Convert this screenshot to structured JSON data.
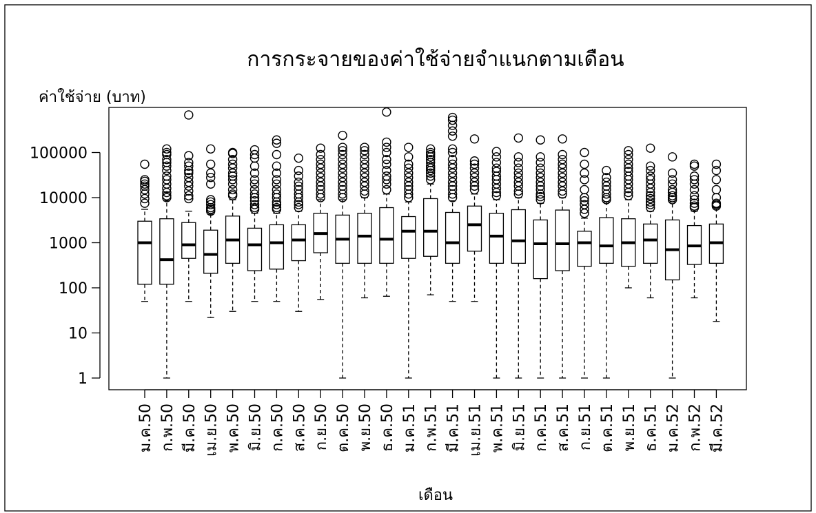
{
  "chart_data": {
    "type": "box",
    "title": "การกระจายของค่าใช้จ่ายจำแนกตามเดือน",
    "xlabel": "เดือน",
    "ylabel": "ค่าใช้จ่าย (บาท)",
    "yscale": "log",
    "ylim": [
      1,
      700000
    ],
    "yticks": [
      1,
      10,
      100,
      1000,
      10000,
      100000
    ],
    "ytick_labels": [
      "1",
      "10",
      "100",
      "1000",
      "10000",
      "100000"
    ],
    "grid": false,
    "categories": [
      "ม.ค.50",
      "ก.พ.50",
      "มี.ค.50",
      "เม.ย.50",
      "พ.ค.50",
      "มิ.ย.50",
      "ก.ค.50",
      "ส.ค.50",
      "ก.ย.50",
      "ต.ค.50",
      "พ.ย.50",
      "ธ.ค.50",
      "ม.ค.51",
      "ก.พ.51",
      "มี.ค.51",
      "เม.ย.51",
      "พ.ค.51",
      "มิ.ย.51",
      "ก.ค.51",
      "ส.ค.51",
      "ก.ย.51",
      "ต.ค.51",
      "พ.ย.51",
      "ธ.ค.51",
      "ม.ค.52",
      "ก.พ.52",
      "มี.ค.52"
    ],
    "boxes": [
      {
        "min": 50,
        "q1": 120,
        "median": 1000,
        "q3": 3000,
        "max": 5500,
        "outliers": [
          7500,
          9500,
          12000,
          15000,
          18000,
          20000,
          23000,
          25000,
          55000
        ]
      },
      {
        "min": 1,
        "q1": 120,
        "median": 420,
        "q3": 3400,
        "max": 8500,
        "outliers": [
          10000,
          11000,
          13000,
          16000,
          20000,
          25000,
          30000,
          40000,
          50000,
          60000,
          70000,
          90000,
          100000,
          120000
        ]
      },
      {
        "min": 50,
        "q1": 450,
        "median": 900,
        "q3": 2800,
        "max": 5000,
        "outliers": [
          9500,
          11000,
          14000,
          18000,
          22000,
          28000,
          35000,
          40000,
          50000,
          60000,
          85000,
          680000
        ]
      },
      {
        "min": 22,
        "q1": 210,
        "median": 550,
        "q3": 1900,
        "max": 4300,
        "outliers": [
          5000,
          5500,
          6000,
          7000,
          8000,
          9000,
          20000,
          28000,
          35000,
          55000,
          120000
        ]
      },
      {
        "min": 30,
        "q1": 350,
        "median": 1150,
        "q3": 3900,
        "max": 9000,
        "outliers": [
          11000,
          12000,
          15000,
          20000,
          25000,
          30000,
          35000,
          45000,
          55000,
          70000,
          95000,
          100000
        ]
      },
      {
        "min": 50,
        "q1": 240,
        "median": 900,
        "q3": 2100,
        "max": 4500,
        "outliers": [
          5500,
          6000,
          7000,
          8500,
          10000,
          12000,
          15000,
          20000,
          25000,
          35000,
          50000,
          75000,
          90000,
          115000
        ]
      },
      {
        "min": 50,
        "q1": 260,
        "median": 1000,
        "q3": 2500,
        "max": 4500,
        "outliers": [
          5500,
          6000,
          7000,
          8000,
          10000,
          12000,
          15000,
          20000,
          25000,
          35000,
          50000,
          90000,
          160000,
          190000
        ]
      },
      {
        "min": 30,
        "q1": 400,
        "median": 1150,
        "q3": 2500,
        "max": 5000,
        "outliers": [
          6000,
          7000,
          8000,
          10000,
          12000,
          15000,
          18000,
          22000,
          30000,
          40000,
          75000
        ]
      },
      {
        "min": 55,
        "q1": 600,
        "median": 1600,
        "q3": 4500,
        "max": 9000,
        "outliers": [
          10000,
          12000,
          15000,
          18000,
          22000,
          28000,
          35000,
          45000,
          55000,
          70000,
          90000,
          125000
        ]
      },
      {
        "min": 1,
        "q1": 350,
        "median": 1200,
        "q3": 4100,
        "max": 9000,
        "outliers": [
          10000,
          12000,
          15000,
          18000,
          22000,
          28000,
          35000,
          45000,
          55000,
          70000,
          90000,
          110000,
          130000,
          240000
        ]
      },
      {
        "min": 60,
        "q1": 350,
        "median": 1400,
        "q3": 4500,
        "max": 10000,
        "outliers": [
          12000,
          14000,
          18000,
          22000,
          28000,
          35000,
          45000,
          55000,
          70000,
          90000,
          110000,
          130000
        ]
      },
      {
        "min": 65,
        "q1": 350,
        "median": 1200,
        "q3": 6000,
        "max": 12000,
        "outliers": [
          15000,
          20000,
          25000,
          30000,
          40000,
          55000,
          70000,
          100000,
          130000,
          170000,
          790000
        ]
      },
      {
        "min": 1,
        "q1": 450,
        "median": 1800,
        "q3": 3800,
        "max": 8000,
        "outliers": [
          10000,
          12000,
          15000,
          18000,
          22000,
          28000,
          35000,
          45000,
          55000,
          80000,
          130000
        ]
      },
      {
        "min": 70,
        "q1": 500,
        "median": 1800,
        "q3": 9500,
        "max": 20000,
        "outliers": [
          25000,
          30000,
          35000,
          40000,
          45000,
          50000,
          60000,
          70000,
          80000,
          90000,
          100000,
          120000
        ]
      },
      {
        "min": 50,
        "q1": 350,
        "median": 1000,
        "q3": 4700,
        "max": 8500,
        "outliers": [
          10000,
          12000,
          15000,
          18000,
          22000,
          28000,
          35000,
          45000,
          55000,
          70000,
          100000,
          120000,
          230000,
          300000,
          400000,
          520000,
          600000
        ]
      },
      {
        "min": 50,
        "q1": 650,
        "median": 2500,
        "q3": 6500,
        "max": 12000,
        "outliers": [
          15000,
          18000,
          22000,
          28000,
          35000,
          45000,
          55000,
          65000,
          200000
        ]
      },
      {
        "min": 1,
        "q1": 350,
        "median": 1400,
        "q3": 4500,
        "max": 9000,
        "outliers": [
          11000,
          13000,
          16000,
          20000,
          25000,
          30000,
          38000,
          45000,
          60000,
          80000,
          105000
        ]
      },
      {
        "min": 1,
        "q1": 350,
        "median": 1100,
        "q3": 5400,
        "max": 10000,
        "outliers": [
          12000,
          14000,
          18000,
          22000,
          28000,
          35000,
          45000,
          60000,
          80000,
          210000
        ]
      },
      {
        "min": 1,
        "q1": 160,
        "median": 950,
        "q3": 3200,
        "max": 7500,
        "outliers": [
          9000,
          10500,
          12000,
          15000,
          18000,
          22000,
          28000,
          35000,
          45000,
          60000,
          80000,
          190000
        ]
      },
      {
        "min": 1,
        "q1": 240,
        "median": 950,
        "q3": 5300,
        "max": 10000,
        "outliers": [
          12000,
          14000,
          18000,
          22000,
          28000,
          35000,
          45000,
          55000,
          70000,
          90000,
          200000
        ]
      },
      {
        "min": 1,
        "q1": 300,
        "median": 1000,
        "q3": 1800,
        "max": 3500,
        "outliers": [
          4500,
          5500,
          7000,
          8500,
          10000,
          15000,
          25000,
          35000,
          55000,
          100000
        ]
      },
      {
        "min": 1,
        "q1": 350,
        "median": 850,
        "q3": 3600,
        "max": 8000,
        "outliers": [
          9000,
          10000,
          12000,
          15000,
          18000,
          22000,
          28000,
          40000
        ]
      },
      {
        "min": 100,
        "q1": 300,
        "median": 1000,
        "q3": 3400,
        "max": 9000,
        "outliers": [
          11000,
          13000,
          16000,
          20000,
          25000,
          30000,
          38000,
          45000,
          55000,
          70000,
          90000,
          110000
        ]
      },
      {
        "min": 60,
        "q1": 350,
        "median": 1150,
        "q3": 2600,
        "max": 5000,
        "outliers": [
          6000,
          7000,
          8000,
          9500,
          11000,
          13000,
          16000,
          20000,
          25000,
          30000,
          40000,
          50000,
          125000
        ]
      },
      {
        "min": 1,
        "q1": 150,
        "median": 700,
        "q3": 3200,
        "max": 8000,
        "outliers": [
          9000,
          10000,
          11000,
          13000,
          15000,
          20000,
          25000,
          35000,
          80000
        ]
      },
      {
        "min": 60,
        "q1": 330,
        "median": 850,
        "q3": 2400,
        "max": 5000,
        "outliers": [
          6000,
          6500,
          7500,
          9000,
          11000,
          15000,
          20000,
          25000,
          30000,
          50000,
          55000
        ]
      },
      {
        "min": 18,
        "q1": 350,
        "median": 1000,
        "q3": 2600,
        "max": 6000,
        "outliers": [
          6500,
          7000,
          7500,
          10000,
          15000,
          25000,
          40000,
          55000
        ]
      }
    ]
  }
}
